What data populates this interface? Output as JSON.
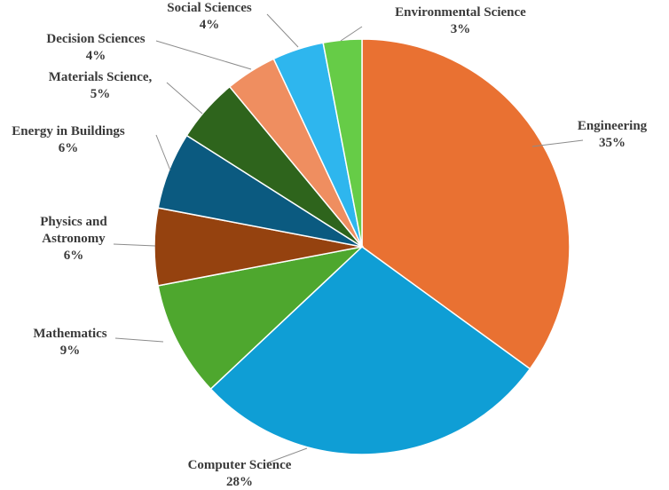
{
  "chart_data": {
    "type": "pie",
    "title": "",
    "slices": [
      {
        "label": "Engineering",
        "value": 35,
        "value_label": "35%",
        "color": "#E97132"
      },
      {
        "label": "Computer Science",
        "value": 28,
        "value_label": "28%",
        "color": "#0F9ED5"
      },
      {
        "label": "Mathematics",
        "value": 9,
        "value_label": "9%",
        "color": "#4EA72E"
      },
      {
        "label": "Physics and Astronomy",
        "value": 6,
        "value_label": "6%",
        "color": "#95420F"
      },
      {
        "label": "Energy in Buildings",
        "value": 6,
        "value_label": "6%",
        "color": "#0B5A80"
      },
      {
        "label": "Materials Science,",
        "value": 5,
        "value_label": "5%",
        "color": "#2E641C"
      },
      {
        "label": "Decision Sciences",
        "value": 4,
        "value_label": "4%",
        "color": "#EF8E60"
      },
      {
        "label": "Social Sciences",
        "value": 4,
        "value_label": "4%",
        "color": "#2EB6EE"
      },
      {
        "label": "Environmental Science",
        "value": 3,
        "value_label": "3%",
        "color": "#66CC47"
      }
    ],
    "start": "12 o'clock",
    "direction": "clockwise",
    "legend": "none"
  }
}
